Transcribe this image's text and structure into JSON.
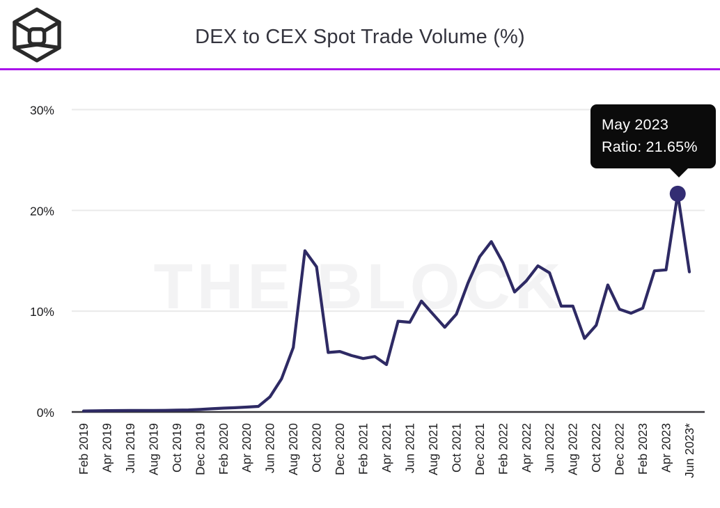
{
  "header": {
    "title": "DEX to CEX Spot Trade Volume (%)",
    "logo_name": "the-block-logo",
    "divider_color": "#a913eb"
  },
  "watermark": "THE BLOCK",
  "tooltip": {
    "line1": "May 2023",
    "line2": "Ratio: 21.65%",
    "bg_color": "#0b0b0b",
    "text_color": "#ffffff"
  },
  "colors": {
    "line": "#2e2a64",
    "marker": "#332d73",
    "grid": "#eaeaea",
    "axis": "#37363b",
    "tick_text": "#1d1d1f",
    "watermark": "#f3f3f4"
  },
  "chart_data": {
    "type": "line",
    "title": "DEX to CEX Spot Trade Volume (%)",
    "xlabel": "",
    "ylabel": "",
    "ylim": [
      0,
      30
    ],
    "grid": "horizontal-only",
    "legend_position": "none",
    "y_ticks": [
      0,
      10,
      20,
      30
    ],
    "y_tick_labels": [
      "0%",
      "10%",
      "20%",
      "30%"
    ],
    "x_tick_labels": [
      "Feb 2019",
      "Apr 2019",
      "Jun 2019",
      "Aug 2019",
      "Oct 2019",
      "Dec 2019",
      "Feb 2020",
      "Apr 2020",
      "Jun 2020",
      "Aug 2020",
      "Oct 2020",
      "Dec 2020",
      "Feb 2021",
      "Apr 2021",
      "Jun 2021",
      "Aug 2021",
      "Oct 2021",
      "Dec 2021",
      "Feb 2022",
      "Apr 2022",
      "Jun 2022",
      "Aug 2022",
      "Oct 2022",
      "Dec 2022",
      "Feb 2023",
      "Apr 2023",
      "Jun 2023*"
    ],
    "x": [
      "Feb 2019",
      "Mar 2019",
      "Apr 2019",
      "May 2019",
      "Jun 2019",
      "Jul 2019",
      "Aug 2019",
      "Sep 2019",
      "Oct 2019",
      "Nov 2019",
      "Dec 2019",
      "Jan 2020",
      "Feb 2020",
      "Mar 2020",
      "Apr 2020",
      "May 2020",
      "Jun 2020",
      "Jul 2020",
      "Aug 2020",
      "Sep 2020",
      "Oct 2020",
      "Nov 2020",
      "Dec 2020",
      "Jan 2021",
      "Feb 2021",
      "Mar 2021",
      "Apr 2021",
      "May 2021",
      "Jun 2021",
      "Jul 2021",
      "Aug 2021",
      "Sep 2021",
      "Oct 2021",
      "Nov 2021",
      "Dec 2021",
      "Jan 2022",
      "Feb 2022",
      "Mar 2022",
      "Apr 2022",
      "May 2022",
      "Jun 2022",
      "Jul 2022",
      "Aug 2022",
      "Sep 2022",
      "Oct 2022",
      "Nov 2022",
      "Dec 2022",
      "Jan 2023",
      "Feb 2023",
      "Mar 2023",
      "Apr 2023",
      "May 2023",
      "Jun 2023"
    ],
    "series": [
      {
        "name": "DEX to CEX spot trade volume ratio",
        "values": [
          0.1,
          0.12,
          0.13,
          0.14,
          0.15,
          0.15,
          0.15,
          0.16,
          0.18,
          0.2,
          0.25,
          0.32,
          0.38,
          0.42,
          0.48,
          0.55,
          1.5,
          3.3,
          6.4,
          16.0,
          14.4,
          5.9,
          6.0,
          5.6,
          5.3,
          5.5,
          4.7,
          9.0,
          8.9,
          11.0,
          9.7,
          8.4,
          9.7,
          12.8,
          15.4,
          16.9,
          14.8,
          11.9,
          13.0,
          14.5,
          13.8,
          10.5,
          10.5,
          7.3,
          8.6,
          12.6,
          10.2,
          9.8,
          10.3,
          14.0,
          14.1,
          21.65,
          13.9
        ]
      }
    ],
    "highlight": {
      "x_label": "May 2023",
      "index": 51,
      "value": 21.65
    }
  }
}
